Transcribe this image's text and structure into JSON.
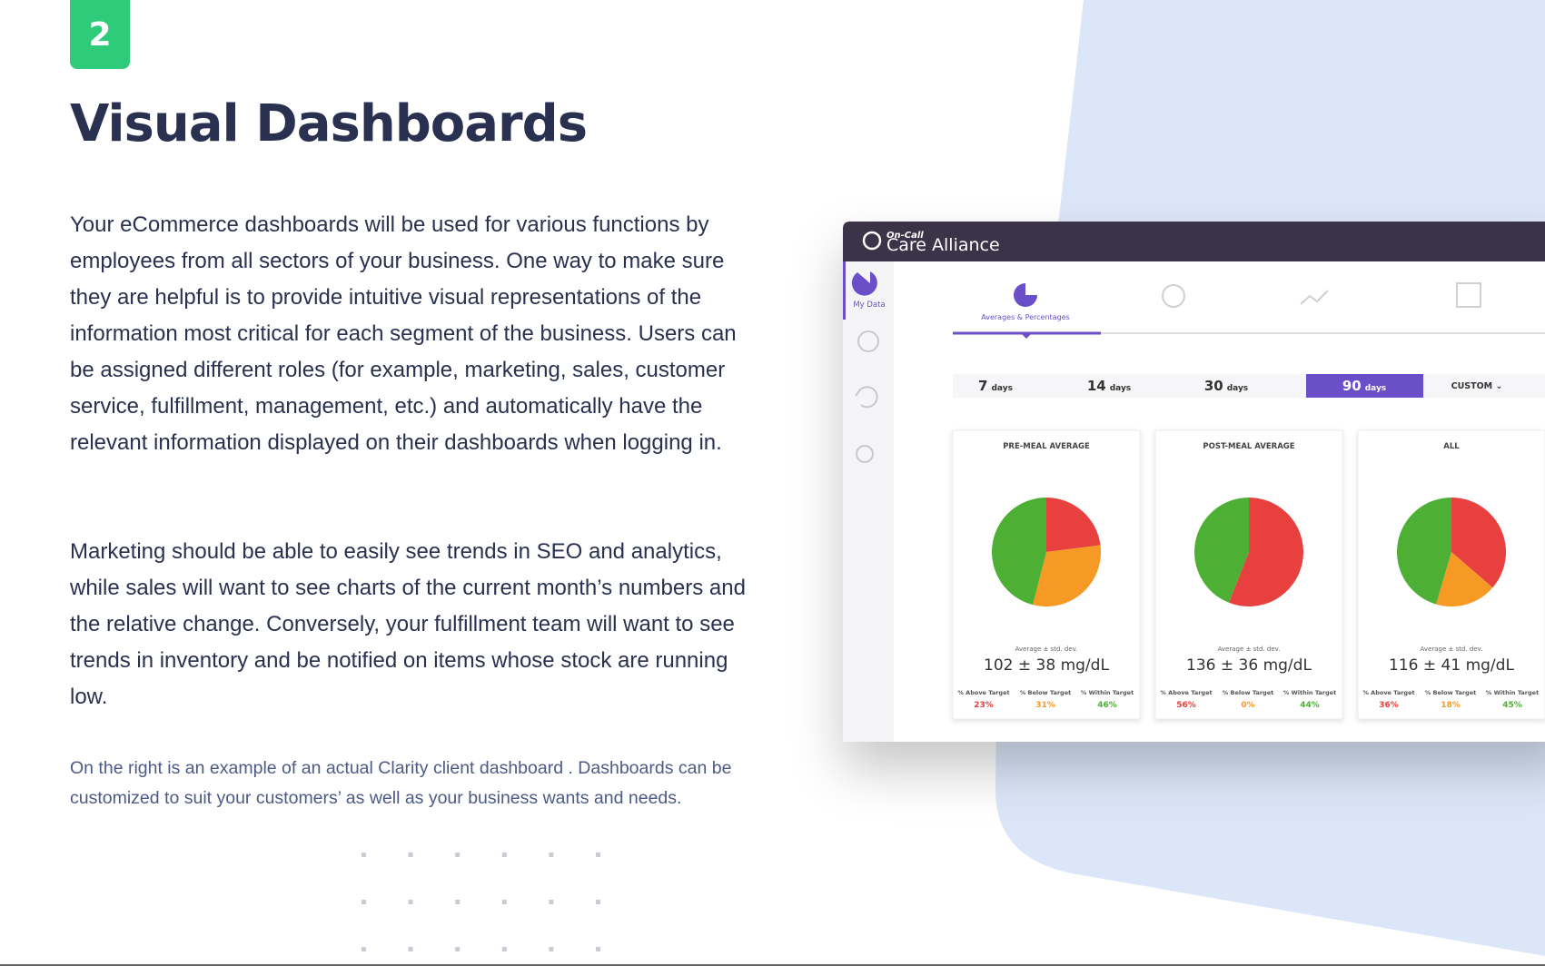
{
  "header": {
    "step": "2",
    "title": "Visual Dashboards"
  },
  "body": {
    "paragraphs": [
      "Your eCommerce dashboards will be used for various functions by employees from all sectors of your business. One way to make sure they are helpful is to provide intuitive visual representations of the information most critical for each segment of the business. Users can be assigned different roles (for example, marketing, sales, customer service, fulfillment, management, etc.) and automatically have the relevant information displayed on their dashboards when logging in.",
      "Marketing should be able to easily see trends in SEO and analytics, while sales will want to see charts of the current month’s numbers and the relative change. Conversely, your fulfillment team will want to see trends in inventory and be notified on items whose stock are running low."
    ],
    "caption": "On the right is an example of an actual Clarity client dashboard . Dashboards can be customized to suit your customers’ as well as your business wants and needs."
  },
  "dashboard": {
    "logo": {
      "tagline": "On-Call",
      "name": "Care Alliance"
    },
    "sidebar": "My Data",
    "active_tab": "Averages & Percentages",
    "ranges": [
      {
        "number": "7",
        "unit": "days"
      },
      {
        "number": "14",
        "unit": "days"
      },
      {
        "number": "30",
        "unit": "days"
      },
      {
        "number": "90",
        "unit": "days"
      }
    ],
    "selected_range": 3,
    "custom": "CUSTOM ⌄",
    "slice_colors": [
      "#e8403f",
      "#f79a25",
      "#4db034"
    ],
    "cards": [
      {
        "title": "PRE-MEAL AVERAGE",
        "stat_label": "Average ± std. dev.",
        "stat": "102 ± 38 mg/dL",
        "legend": [
          "% Above Target",
          "% Below Target",
          "% Within Target"
        ],
        "values": [
          23,
          31,
          46
        ],
        "value_labels": [
          "23%",
          "31%",
          "46%"
        ]
      },
      {
        "title": "POST-MEAL AVERAGE",
        "stat_label": "Average ± std. dev.",
        "stat": "136 ± 36 mg/dL",
        "legend": [
          "% Above Target",
          "% Below Target",
          "% Within Target"
        ],
        "values": [
          56,
          0,
          44
        ],
        "value_labels": [
          "56%",
          "0%",
          "44%"
        ]
      },
      {
        "title": "ALL",
        "stat_label": "Average ± std. dev.",
        "stat": "116 ± 41 mg/dL",
        "legend": [
          "% Above Target",
          "% Below Target",
          "% Within Target"
        ],
        "values": [
          36,
          18,
          45
        ],
        "value_labels": [
          "36%",
          "18%",
          "45%"
        ]
      }
    ]
  }
}
